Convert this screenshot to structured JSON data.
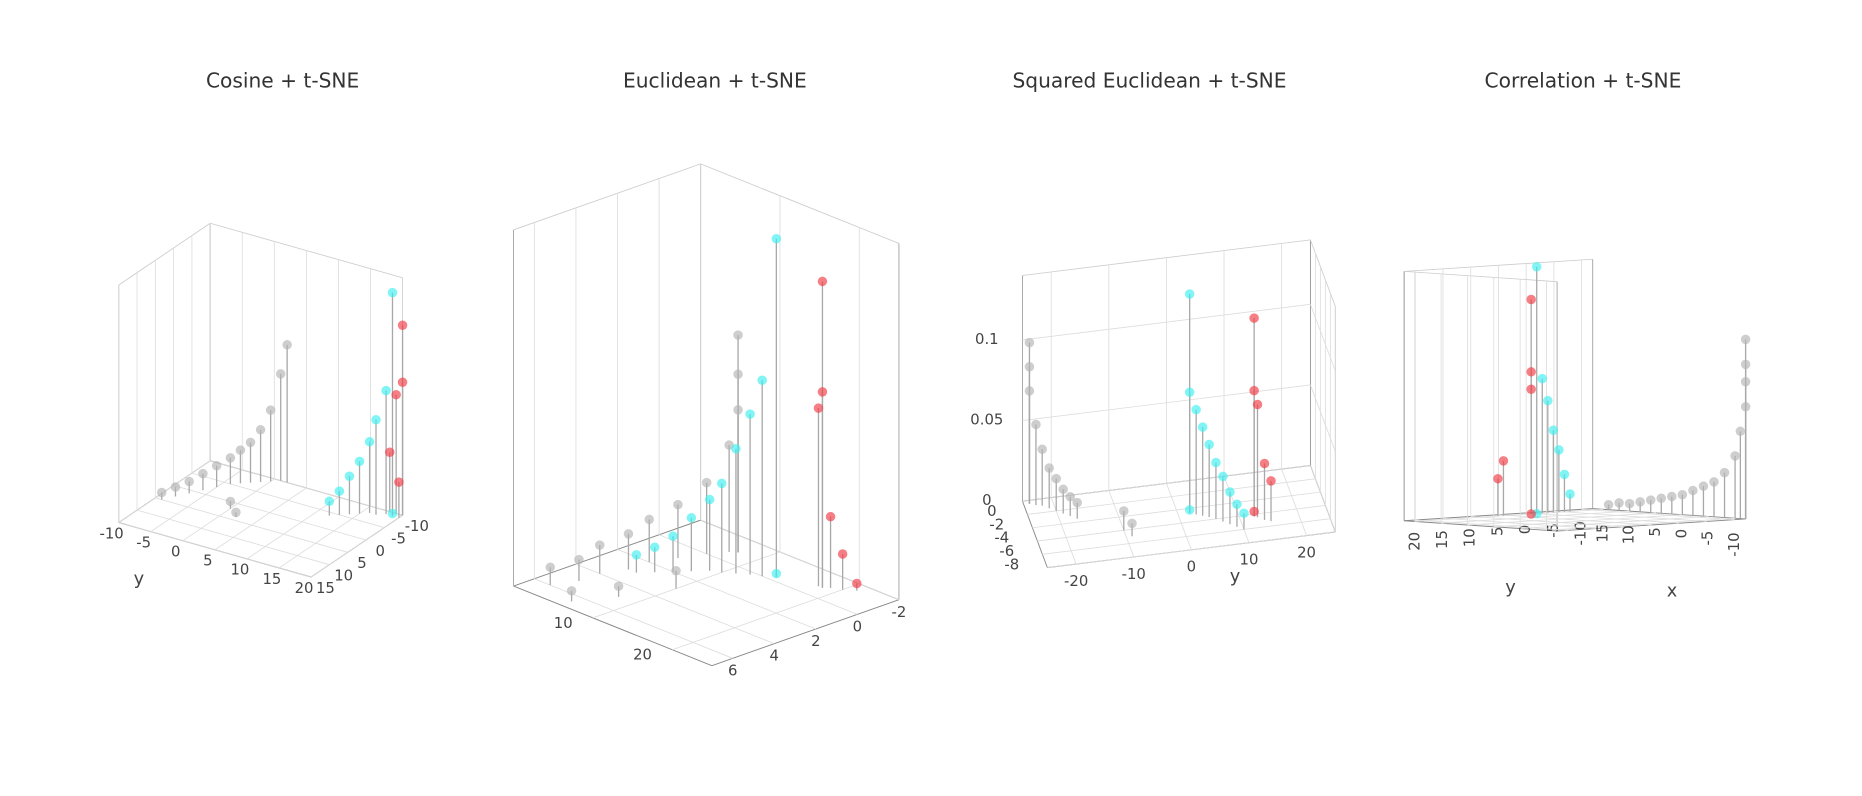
{
  "chart_data": [
    {
      "type": "scatter3d",
      "title": "Cosine + t-SNE",
      "ylabel": "y",
      "xlim": [
        -10,
        15
      ],
      "ylim": [
        -10,
        20
      ],
      "zlim": [
        0,
        1
      ],
      "xticks": [
        -10,
        -5,
        0,
        5,
        10,
        15
      ],
      "yticks": [
        -10,
        -5,
        0,
        5,
        10,
        15,
        20
      ],
      "series": [
        {
          "color": "#b4b4b4",
          "x": [
            -10,
            -10,
            -9,
            -8,
            -7,
            -6,
            -5,
            -3,
            -1,
            1,
            3,
            5,
            2,
            4
          ],
          "y": [
            2,
            1,
            0,
            -1,
            -2,
            -3,
            -4,
            -5,
            -6,
            -7,
            -8,
            -9,
            0,
            2
          ],
          "z": [
            0.58,
            0.45,
            0.3,
            0.22,
            0.17,
            0.14,
            0.11,
            0.09,
            0.07,
            0.05,
            0.04,
            0.03,
            0.03,
            0.02
          ]
        },
        {
          "color": "#3ef0f0",
          "x": [
            -9,
            -9,
            -8,
            -8,
            -7,
            -6,
            -5,
            -4,
            -9
          ],
          "y": [
            19,
            18,
            17,
            16,
            15,
            14,
            13,
            12,
            19
          ],
          "z": [
            0.94,
            0.52,
            0.4,
            0.3,
            0.22,
            0.16,
            0.1,
            0.06,
            0.01
          ]
        },
        {
          "color": "#ef3b44",
          "x": [
            -10,
            -10,
            -10,
            -10,
            -9
          ],
          "y": [
            20,
            20,
            19,
            18,
            20
          ],
          "z": [
            0.8,
            0.56,
            0.5,
            0.25,
            0.15
          ]
        }
      ]
    },
    {
      "type": "scatter3d",
      "title": "Euclidean + t-SNE",
      "xlim": [
        -2,
        7
      ],
      "ylim": [
        0,
        25
      ],
      "zlim": [
        0,
        1
      ],
      "xticks": [
        -2,
        0,
        2,
        4,
        6
      ],
      "yticks": [
        10,
        20
      ],
      "series": [
        {
          "color": "#b4b4b4",
          "x": [
            -0.9,
            -0.9,
            -0.9,
            -0.7,
            0,
            1,
            2,
            3,
            4,
            5,
            6,
            3,
            5,
            6.5
          ],
          "y": [
            7.6,
            7.6,
            7.6,
            7,
            6,
            5,
            4,
            4,
            3,
            3,
            2,
            10,
            8,
            6
          ],
          "z": [
            0.61,
            0.5,
            0.4,
            0.3,
            0.2,
            0.15,
            0.12,
            0.1,
            0.08,
            0.06,
            0.05,
            0.05,
            0.03,
            0.03
          ]
        },
        {
          "color": "#3ef0f0",
          "x": [
            -0.3,
            0,
            0.2,
            0.5,
            0.8,
            1,
            1.5,
            2,
            2.5,
            3,
            -0.3
          ],
          "y": [
            14,
            13,
            12,
            11,
            10,
            9,
            8,
            7,
            6,
            5,
            14
          ],
          "z": [
            0.95,
            0.55,
            0.45,
            0.35,
            0.25,
            0.2,
            0.15,
            0.1,
            0.07,
            0.05,
            0.01
          ]
        },
        {
          "color": "#ef3b44",
          "x": [
            -0.8,
            -0.8,
            -0.8,
            -1,
            -1.2,
            -1.5
          ],
          "y": [
            18.5,
            18.5,
            18,
            19,
            20,
            21
          ],
          "z": [
            0.86,
            0.55,
            0.5,
            0.2,
            0.1,
            0.02
          ]
        }
      ]
    },
    {
      "type": "scatter3d",
      "title": "Squared Euclidean + t-SNE",
      "ylabel": "y",
      "xlim": [
        -8,
        2
      ],
      "ylim": [
        -25,
        25
      ],
      "zlim": [
        0,
        0.14
      ],
      "xticks": [
        -8,
        -6,
        -4,
        -2,
        0
      ],
      "yticks": [
        -20,
        -10,
        0,
        10,
        20
      ],
      "zticks": [
        0,
        0.05,
        0.1
      ],
      "series": [
        {
          "color": "#b4b4b4",
          "x": [
            1.5,
            1.5,
            1.5,
            1.2,
            1,
            0.5,
            0,
            -0.5,
            -1,
            -1.5,
            -4,
            -5
          ],
          "y": [
            -24,
            -24,
            -24,
            -23,
            -22,
            -21,
            -20,
            -19,
            -18,
            -17,
            -10,
            -9
          ],
          "z": [
            0.1,
            0.085,
            0.07,
            0.05,
            0.035,
            0.025,
            0.02,
            0.015,
            0.012,
            0.01,
            0.012,
            0.008
          ]
        },
        {
          "color": "#3ef0f0",
          "x": [
            -2.7,
            -2.7,
            -3,
            -3.3,
            -3.6,
            -4,
            -4.5,
            -5,
            -5.5,
            -6,
            -2.7
          ],
          "y": [
            2,
            2,
            3,
            4,
            5,
            6,
            7,
            8,
            9,
            10,
            2
          ],
          "z": [
            0.136,
            0.075,
            0.065,
            0.055,
            0.045,
            0.035,
            0.028,
            0.02,
            0.014,
            0.01,
            0.002
          ]
        },
        {
          "color": "#ef3b44",
          "x": [
            -4.3,
            -4.3,
            -4.5,
            -5,
            -5.3,
            -4.3
          ],
          "y": [
            12.5,
            12.5,
            13,
            14,
            15,
            12.5
          ],
          "z": [
            0.123,
            0.078,
            0.07,
            0.035,
            0.025,
            0.003
          ]
        }
      ]
    },
    {
      "type": "scatter3d",
      "title": "Correlation + t-SNE",
      "xlabel": "x",
      "ylabel": "y",
      "xlim": [
        -12,
        17
      ],
      "ylim": [
        -12,
        22
      ],
      "zlim": [
        0,
        1
      ],
      "xticks": [
        -10,
        -5,
        0,
        5,
        10,
        15
      ],
      "yticks": [
        -10,
        -5,
        0,
        5,
        10,
        15,
        20
      ],
      "series": [
        {
          "color": "#b4b4b4",
          "x": [
            -12,
            -12,
            -12,
            -12,
            -11,
            -10,
            -8,
            -6,
            -4,
            -2,
            0,
            2,
            4,
            6,
            8,
            10,
            12,
            14
          ],
          "y": [
            -12,
            -12,
            -12,
            -12,
            -12,
            -12,
            -12,
            -12,
            -12,
            -12,
            -12,
            -12,
            -12,
            -12,
            -12,
            -12,
            -12,
            -12
          ],
          "z": [
            0.72,
            0.62,
            0.55,
            0.45,
            0.35,
            0.25,
            0.18,
            0.14,
            0.12,
            0.1,
            0.08,
            0.07,
            0.06,
            0.05,
            0.04,
            0.03,
            0.03,
            0.02
          ]
        },
        {
          "color": "#3ef0f0",
          "x": [
            15,
            15,
            15,
            15,
            15,
            15,
            15,
            15
          ],
          "y": [
            0,
            -1,
            -2,
            -3,
            -4,
            -5,
            -6,
            0
          ],
          "z": [
            0.99,
            0.54,
            0.45,
            0.33,
            0.25,
            0.15,
            0.07,
            0.0
          ]
        },
        {
          "color": "#ef3b44",
          "x": [
            15,
            15,
            15,
            15,
            15,
            15
          ],
          "y": [
            1,
            1,
            1,
            6,
            7,
            1
          ],
          "z": [
            0.86,
            0.57,
            0.5,
            0.22,
            0.15,
            0.0
          ]
        }
      ]
    }
  ]
}
